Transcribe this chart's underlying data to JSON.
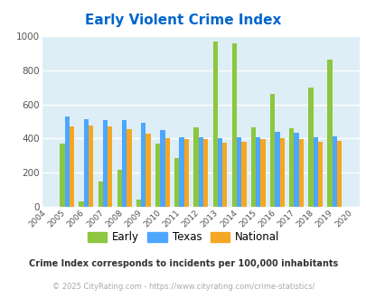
{
  "title": "Early Violent Crime Index",
  "years": [
    2004,
    2005,
    2006,
    2007,
    2008,
    2009,
    2010,
    2011,
    2012,
    2013,
    2014,
    2015,
    2016,
    2017,
    2018,
    2019,
    2020
  ],
  "early": [
    null,
    370,
    35,
    150,
    220,
    45,
    370,
    285,
    465,
    965,
    955,
    465,
    660,
    460,
    695,
    860,
    null
  ],
  "texas": [
    null,
    530,
    515,
    510,
    510,
    490,
    450,
    407,
    407,
    403,
    407,
    410,
    437,
    435,
    410,
    415,
    null
  ],
  "national": [
    null,
    470,
    475,
    470,
    455,
    430,
    405,
    395,
    395,
    375,
    380,
    395,
    400,
    395,
    380,
    385,
    null
  ],
  "early_color": "#8dc63f",
  "texas_color": "#4da6ff",
  "national_color": "#f5a623",
  "bg_color": "#ddeef6",
  "title_color": "#0066cc",
  "note_color": "#333333",
  "credit_color": "#aaaaaa",
  "note": "Crime Index corresponds to incidents per 100,000 inhabitants",
  "credit": "© 2025 CityRating.com - https://www.cityrating.com/crime-statistics/",
  "ylim": [
    0,
    1000
  ],
  "yticks": [
    0,
    200,
    400,
    600,
    800,
    1000
  ],
  "all_years": [
    2004,
    2005,
    2006,
    2007,
    2008,
    2009,
    2010,
    2011,
    2012,
    2013,
    2014,
    2015,
    2016,
    2017,
    2018,
    2019,
    2020
  ]
}
